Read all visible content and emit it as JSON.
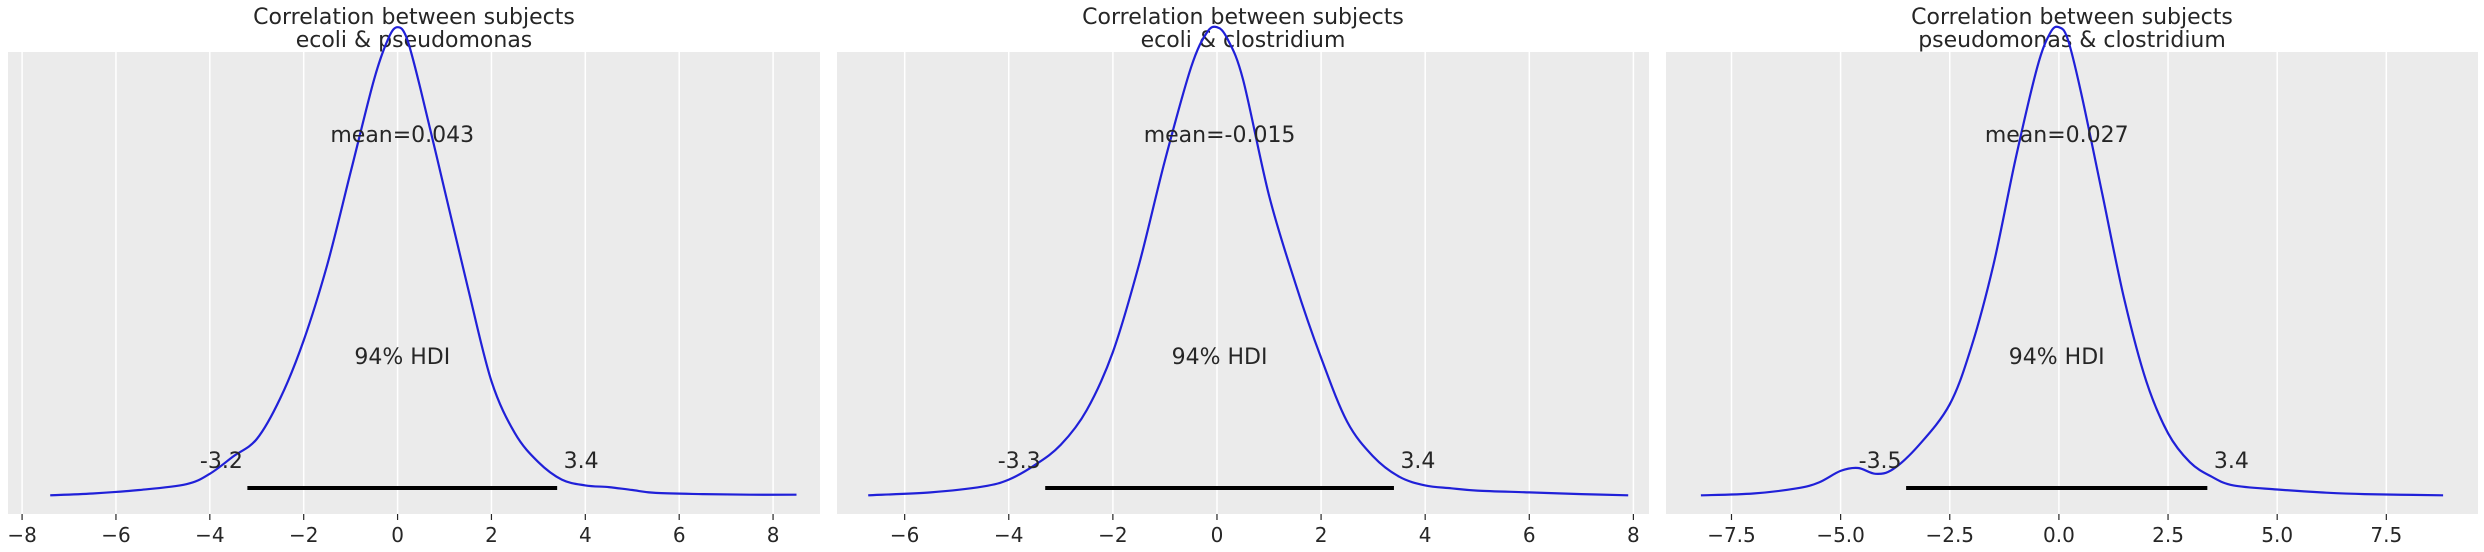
{
  "colors": {
    "panel_bg": "#ebebeb",
    "grid": "#ffffff",
    "density": "#2020d8",
    "hdi": "#000000",
    "text": "#262626"
  },
  "chart_data": [
    {
      "type": "line",
      "title": "Correlation between subjects",
      "subtitle": "ecoli & pseudomonas",
      "xlim": [
        -8.3,
        9.0
      ],
      "xticks": [
        -8,
        -6,
        -4,
        -2,
        0,
        2,
        4,
        6,
        8
      ],
      "xtick_labels": [
        "−8",
        "−6",
        "−4",
        "−2",
        "0",
        "2",
        "4",
        "6",
        "8"
      ],
      "grid": true,
      "mean_label": "mean=0.043",
      "hdi_label": "94% HDI",
      "hdi": [
        -3.2,
        3.4
      ],
      "hdi_low_label": "-3.2",
      "hdi_high_label": "3.4",
      "density": {
        "x": [
          -7.4,
          -6.5,
          -5.5,
          -4.5,
          -4.0,
          -3.5,
          -3.0,
          -2.5,
          -2.0,
          -1.5,
          -1.0,
          -0.5,
          -0.2,
          0.0,
          0.2,
          0.5,
          1.0,
          1.5,
          2.0,
          2.5,
          3.0,
          3.5,
          4.0,
          4.5,
          5.0,
          5.5,
          6.5,
          7.5,
          8.5
        ],
        "y": [
          0.003,
          0.006,
          0.012,
          0.022,
          0.04,
          0.07,
          0.1,
          0.17,
          0.27,
          0.4,
          0.56,
          0.72,
          0.79,
          0.81,
          0.79,
          0.7,
          0.53,
          0.36,
          0.2,
          0.11,
          0.06,
          0.03,
          0.02,
          0.017,
          0.012,
          0.007,
          0.005,
          0.004,
          0.004
        ]
      }
    },
    {
      "type": "line",
      "title": "Correlation between subjects",
      "subtitle": "ecoli & clostridium",
      "xlim": [
        -7.3,
        8.3
      ],
      "xticks": [
        -6,
        -4,
        -2,
        0,
        2,
        4,
        6,
        8
      ],
      "xtick_labels": [
        "−6",
        "−4",
        "−2",
        "0",
        "2",
        "4",
        "6",
        "8"
      ],
      "grid": true,
      "mean_label": "mean=-0.015",
      "hdi_label": "94% HDI",
      "hdi": [
        -3.3,
        3.4
      ],
      "hdi_low_label": "-3.3",
      "hdi_high_label": "3.4",
      "density": {
        "x": [
          -6.7,
          -5.5,
          -4.5,
          -4.0,
          -3.5,
          -3.0,
          -2.5,
          -2.0,
          -1.5,
          -1.0,
          -0.5,
          -0.2,
          0.0,
          0.2,
          0.5,
          1.0,
          1.5,
          2.0,
          2.5,
          3.0,
          3.5,
          4.0,
          4.5,
          5.0,
          6.0,
          7.0,
          7.9
        ],
        "y": [
          0.003,
          0.008,
          0.018,
          0.03,
          0.055,
          0.09,
          0.15,
          0.25,
          0.4,
          0.58,
          0.74,
          0.8,
          0.81,
          0.79,
          0.72,
          0.52,
          0.37,
          0.24,
          0.13,
          0.07,
          0.035,
          0.02,
          0.015,
          0.011,
          0.008,
          0.005,
          0.003
        ]
      }
    },
    {
      "type": "line",
      "title": "Correlation between subjects",
      "subtitle": "pseudomonas & clostridium",
      "xlim": [
        -9.0,
        9.6
      ],
      "xticks": [
        -7.5,
        -5.0,
        -2.5,
        0.0,
        2.5,
        5.0,
        7.5
      ],
      "xtick_labels": [
        "−7.5",
        "−5.0",
        "−2.5",
        "0.0",
        "2.5",
        "5.0",
        "7.5"
      ],
      "grid": true,
      "mean_label": "mean=0.027",
      "hdi_label": "94% HDI",
      "hdi": [
        -3.5,
        3.4
      ],
      "hdi_low_label": "-3.5",
      "hdi_high_label": "3.4",
      "density": {
        "x": [
          -8.2,
          -7.0,
          -6.0,
          -5.5,
          -5.0,
          -4.6,
          -4.2,
          -3.8,
          -3.2,
          -2.5,
          -2.0,
          -1.5,
          -1.0,
          -0.5,
          -0.2,
          0.0,
          0.2,
          0.5,
          1.0,
          1.5,
          2.0,
          2.5,
          3.0,
          3.5,
          4.0,
          5.0,
          6.0,
          7.0,
          8.8
        ],
        "y": [
          0.003,
          0.006,
          0.015,
          0.025,
          0.045,
          0.05,
          0.04,
          0.048,
          0.09,
          0.16,
          0.26,
          0.4,
          0.58,
          0.74,
          0.8,
          0.81,
          0.79,
          0.7,
          0.52,
          0.34,
          0.2,
          0.11,
          0.06,
          0.035,
          0.02,
          0.013,
          0.008,
          0.005,
          0.003
        ]
      }
    }
  ]
}
